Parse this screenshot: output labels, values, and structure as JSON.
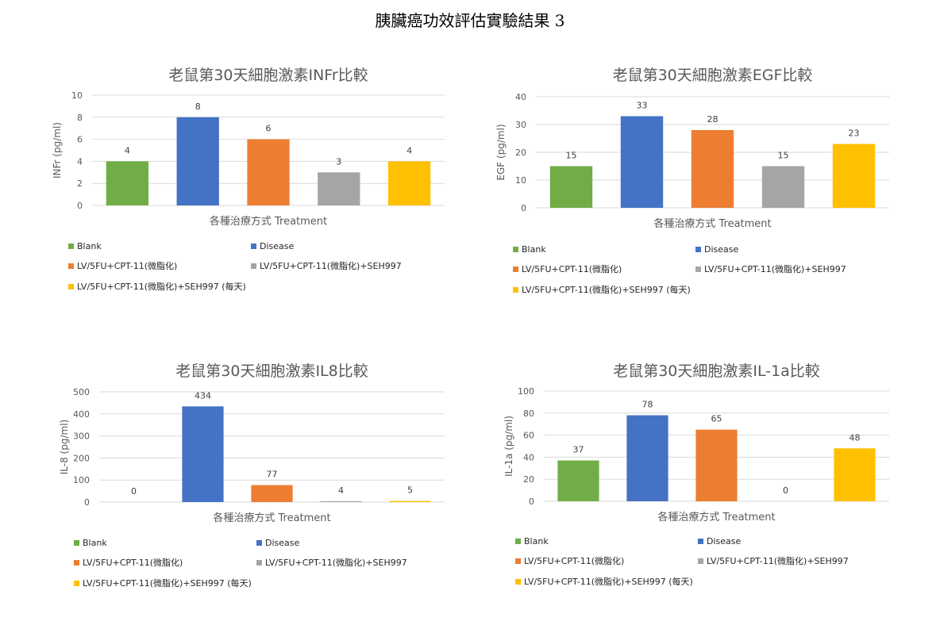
{
  "page": {
    "title": "胰臟癌功效評估實驗結果 3"
  },
  "colors": {
    "grid": "#d9d9d9",
    "axis_text": "#595959",
    "title_text": "#595959"
  },
  "series": [
    {
      "name": "Blank",
      "color": "#70ad47"
    },
    {
      "name": "Disease",
      "color": "#4472c4"
    },
    {
      "name": "LV/5FU+CPT-11(微脂化)",
      "color": "#ed7d31"
    },
    {
      "name": "LV/5FU+CPT-11(微脂化)+SEH997",
      "color": "#a5a5a5"
    },
    {
      "name": "LV/5FU+CPT-11(微脂化)+SEH997 (每天)",
      "color": "#ffc000"
    }
  ],
  "chart_data": [
    {
      "type": "bar",
      "title": "老鼠第30天細胞激素INFr比較",
      "xlabel": "各種治療方式 Treatment",
      "ylabel": "INFr (pg/ml)",
      "ylim": [
        0,
        10
      ],
      "yticks": [
        0,
        2,
        4,
        6,
        8,
        10
      ],
      "values": [
        4,
        8,
        6,
        3,
        4
      ],
      "grid": true,
      "legend": "bottom"
    },
    {
      "type": "bar",
      "title": "老鼠第30天細胞激素EGF比較",
      "xlabel": "各種治療方式 Treatment",
      "ylabel": "EGF (pg/ml)",
      "ylim": [
        0,
        40
      ],
      "yticks": [
        0,
        10,
        20,
        30,
        40
      ],
      "values": [
        15,
        33,
        28,
        15,
        23
      ],
      "grid": true,
      "legend": "bottom"
    },
    {
      "type": "bar",
      "title": "老鼠第30天細胞激素IL8比較",
      "xlabel": "各種治療方式 Treatment",
      "ylabel": "IL-8 (pg/ml)",
      "ylim": [
        0,
        500
      ],
      "yticks": [
        0,
        100,
        200,
        300,
        400,
        500
      ],
      "values": [
        0,
        434,
        77,
        4,
        5
      ],
      "grid": true,
      "legend": "bottom"
    },
    {
      "type": "bar",
      "title": "老鼠第30天細胞激素IL-1a比較",
      "xlabel": "各種治療方式 Treatment",
      "ylabel": "IL-1a (pg/ml)",
      "ylim": [
        0,
        100
      ],
      "yticks": [
        0,
        20,
        40,
        60,
        80,
        100
      ],
      "values": [
        37,
        78,
        65,
        0,
        48
      ],
      "grid": true,
      "legend": "bottom"
    }
  ]
}
